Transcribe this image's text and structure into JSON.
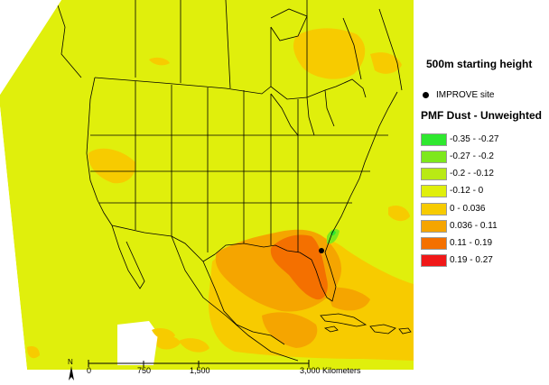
{
  "legend": {
    "title": "500m starting height",
    "site_label": "IMPROVE site",
    "heading": "PMF Dust - Unweighted",
    "classes": [
      {
        "label": "-0.35 - -0.27",
        "color": "#2fe82f"
      },
      {
        "label": "-0.27 - -0.2",
        "color": "#7ee81c"
      },
      {
        "label": "-0.2 - -0.12",
        "color": "#b9ea14"
      },
      {
        "label": "-0.12 - 0",
        "color": "#e0ef0c"
      },
      {
        "label": "0 - 0.036",
        "color": "#f7cb00"
      },
      {
        "label": "0.036 - 0.11",
        "color": "#f5a500"
      },
      {
        "label": "0.11 - 0.19",
        "color": "#f47000"
      },
      {
        "label": "0.19 - 0.27",
        "color": "#f01818"
      }
    ]
  },
  "scale": {
    "ticks": [
      "0",
      "750",
      "1,500",
      "3,000 Kilometers"
    ]
  },
  "north_label": "N",
  "colors": {
    "background": "#e0ef0c",
    "outline": "#000000",
    "site_dot": "#000000"
  }
}
